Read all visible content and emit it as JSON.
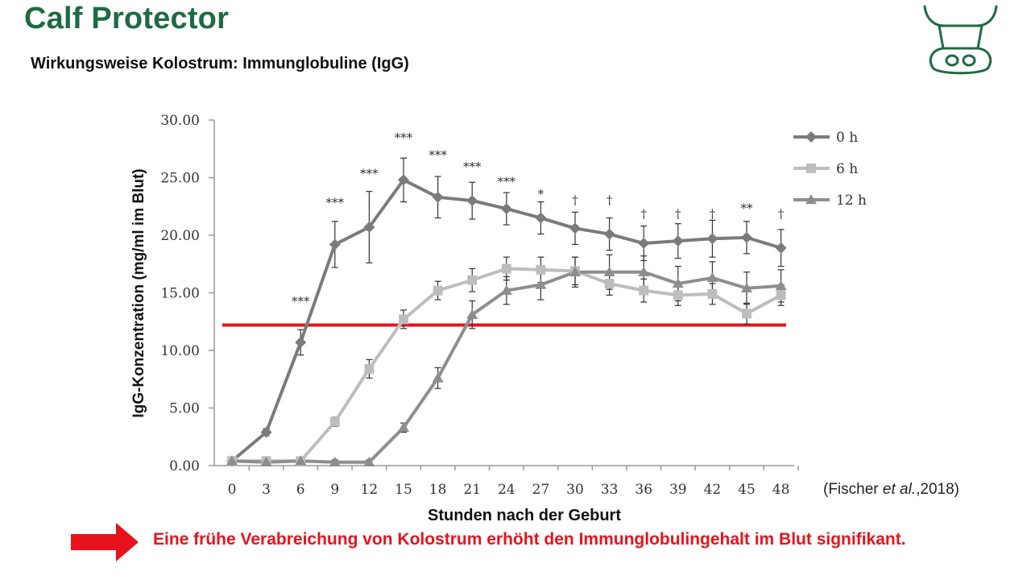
{
  "header": {
    "brand": "Calf Protector",
    "subtitle": "Wirkungsweise Kolostrum: Immunglobuline (IgG)",
    "logo_icon": "cow-head-icon"
  },
  "citation": {
    "prefix": "(Fischer ",
    "italic": "et al.",
    "suffix": ",2018)"
  },
  "conclusion": {
    "arrow_icon": "arrow-right-icon",
    "text": "Eine frühe Verabreichung von Kolostrum erhöht den Immunglobulingehalt im Blut signifikant."
  },
  "chart_data": {
    "type": "line",
    "xlabel": "Stunden nach der Geburt",
    "ylabel": "IgG-Konzentration (mg/ml im Blut)",
    "x": [
      0,
      3,
      6,
      9,
      12,
      15,
      18,
      21,
      24,
      27,
      30,
      33,
      36,
      39,
      42,
      45,
      48
    ],
    "y_ticks": [
      "0.00",
      "5.00",
      "10.00",
      "15.00",
      "20.00",
      "25.00",
      "30.00"
    ],
    "ylim": [
      0,
      30
    ],
    "grid": false,
    "legend_position": "top-right",
    "threshold_line": {
      "value": 12.2,
      "color": "#e8121c"
    },
    "series": [
      {
        "name": "0 h",
        "color": "#7b7b7b",
        "marker": "diamond",
        "values": [
          0.4,
          2.9,
          10.7,
          19.2,
          20.7,
          24.8,
          23.3,
          23.0,
          22.3,
          21.5,
          20.6,
          20.1,
          19.3,
          19.5,
          19.7,
          19.8,
          18.9
        ],
        "errors": [
          0.2,
          0.3,
          1.1,
          2.0,
          3.1,
          1.9,
          1.8,
          1.6,
          1.4,
          1.4,
          1.4,
          1.4,
          1.5,
          1.5,
          1.6,
          1.4,
          1.6
        ]
      },
      {
        "name": "6 h",
        "color": "#bdbdbd",
        "marker": "square",
        "values": [
          0.4,
          0.4,
          0.4,
          3.8,
          8.4,
          12.7,
          15.2,
          16.1,
          17.1,
          17.0,
          16.9,
          15.8,
          15.2,
          14.8,
          14.9,
          13.2,
          14.8
        ],
        "errors": [
          0.2,
          0.2,
          0.2,
          0.4,
          0.8,
          0.8,
          0.8,
          1.0,
          1.0,
          1.1,
          1.2,
          1.0,
          1.0,
          0.9,
          0.9,
          0.9,
          0.9
        ]
      },
      {
        "name": "12 h",
        "color": "#8e8e8e",
        "marker": "triangle",
        "values": [
          0.4,
          0.3,
          0.4,
          0.3,
          0.3,
          3.3,
          7.6,
          13.1,
          15.2,
          15.7,
          16.8,
          16.8,
          16.8,
          15.8,
          16.3,
          15.4,
          15.6
        ],
        "errors": [
          0.2,
          0.2,
          0.2,
          0.2,
          0.2,
          0.4,
          0.9,
          1.2,
          1.2,
          1.3,
          1.3,
          1.5,
          1.4,
          1.5,
          1.4,
          1.4,
          1.4
        ]
      }
    ],
    "annotations": [
      {
        "x": 6,
        "label": "***",
        "y": 13.9
      },
      {
        "x": 9,
        "label": "***",
        "y": 22.5
      },
      {
        "x": 12,
        "label": "***",
        "y": 25.0
      },
      {
        "x": 15,
        "label": "***",
        "y": 28.1
      },
      {
        "x": 18,
        "label": "***",
        "y": 26.6
      },
      {
        "x": 21,
        "label": "***",
        "y": 25.6
      },
      {
        "x": 24,
        "label": "***",
        "y": 24.3
      },
      {
        "x": 27,
        "label": "*",
        "y": 23.2
      },
      {
        "x": 30,
        "label": "†",
        "y": 22.7
      },
      {
        "x": 33,
        "label": "†",
        "y": 22.7
      },
      {
        "x": 36,
        "label": "†",
        "y": 21.5
      },
      {
        "x": 39,
        "label": "†",
        "y": 21.5
      },
      {
        "x": 42,
        "label": "†",
        "y": 21.5
      },
      {
        "x": 45,
        "label": "**",
        "y": 22.0
      },
      {
        "x": 48,
        "label": "†",
        "y": 21.5
      }
    ]
  }
}
